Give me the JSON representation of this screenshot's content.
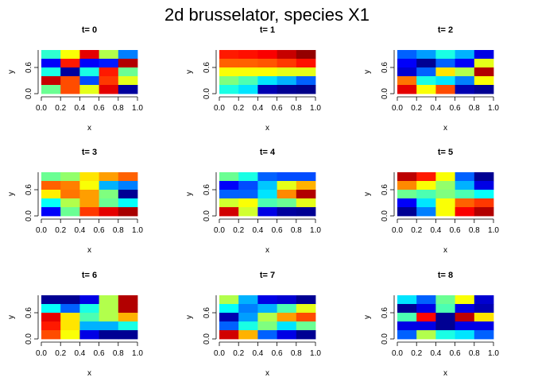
{
  "title": "2d brusselator, species X1",
  "chart_data": {
    "type": "heatmap",
    "title": "2d brusselator, species X1",
    "palette": "jet",
    "jet_colors": [
      "#00007F",
      "#0000FF",
      "#007FFF",
      "#00FFFF",
      "#7FFF7F",
      "#FFFF00",
      "#FF7F00",
      "#FF0000",
      "#7F0000"
    ],
    "xlabel": "x",
    "ylabel": "y",
    "xlim": [
      0,
      1
    ],
    "ylim": [
      0,
      1
    ],
    "x_ticks": [
      "0.0",
      "0.2",
      "0.4",
      "0.6",
      "0.8",
      "1.0"
    ],
    "y_ticks": [
      "0.0",
      "0.6"
    ],
    "grid_cols": 5,
    "grid_rows": 5,
    "value_scale": [
      0,
      1
    ],
    "panels": [
      {
        "label": "t=  0",
        "rows_top_to_bottom": [
          [
            0.42,
            0.62,
            0.9,
            0.55,
            0.25
          ],
          [
            0.12,
            0.85,
            0.12,
            0.15,
            0.95
          ],
          [
            0.4,
            0.03,
            0.4,
            0.85,
            0.48
          ],
          [
            0.93,
            0.8,
            0.2,
            0.82,
            0.6
          ],
          [
            0.48,
            0.8,
            0.6,
            0.9,
            0.03
          ]
        ]
      },
      {
        "label": "t=  1",
        "rows_top_to_bottom": [
          [
            0.85,
            0.86,
            0.88,
            0.93,
            0.98
          ],
          [
            0.78,
            0.78,
            0.79,
            0.82,
            0.86
          ],
          [
            0.62,
            0.62,
            0.62,
            0.6,
            0.6
          ],
          [
            0.5,
            0.45,
            0.35,
            0.3,
            0.22
          ],
          [
            0.4,
            0.35,
            0.05,
            0.02,
            0.01
          ]
        ]
      },
      {
        "label": "t=  2",
        "rows_top_to_bottom": [
          [
            0.22,
            0.28,
            0.4,
            0.3,
            0.1
          ],
          [
            0.12,
            0.02,
            0.22,
            0.12,
            0.6
          ],
          [
            0.08,
            0.22,
            0.65,
            0.55,
            0.95
          ],
          [
            0.76,
            0.4,
            0.35,
            0.25,
            0.62
          ],
          [
            0.9,
            0.62,
            0.8,
            0.05,
            0.02
          ]
        ]
      },
      {
        "label": "t=  3",
        "rows_top_to_bottom": [
          [
            0.48,
            0.52,
            0.65,
            0.72,
            0.78
          ],
          [
            0.78,
            0.75,
            0.62,
            0.3,
            0.25
          ],
          [
            0.64,
            0.76,
            0.72,
            0.5,
            0.02
          ],
          [
            0.38,
            0.55,
            0.72,
            0.48,
            0.38
          ],
          [
            0.12,
            0.48,
            0.82,
            0.9,
            0.96
          ]
        ]
      },
      {
        "label": "t=  4",
        "rows_top_to_bottom": [
          [
            0.48,
            0.4,
            0.22,
            0.2,
            0.2
          ],
          [
            0.12,
            0.2,
            0.32,
            0.6,
            0.7
          ],
          [
            0.22,
            0.22,
            0.35,
            0.74,
            0.95
          ],
          [
            0.58,
            0.62,
            0.45,
            0.48,
            0.6
          ],
          [
            0.92,
            0.58,
            0.1,
            0.03,
            0.02
          ]
        ]
      },
      {
        "label": "t=  5",
        "rows_top_to_bottom": [
          [
            0.94,
            0.85,
            0.62,
            0.22,
            0.02
          ],
          [
            0.74,
            0.62,
            0.52,
            0.3,
            0.1
          ],
          [
            0.48,
            0.45,
            0.5,
            0.45,
            0.38
          ],
          [
            0.12,
            0.35,
            0.62,
            0.78,
            0.82
          ],
          [
            0.02,
            0.25,
            0.62,
            0.88,
            0.95
          ]
        ]
      },
      {
        "label": "t=  6",
        "rows_top_to_bottom": [
          [
            0.02,
            0.02,
            0.1,
            0.55,
            0.95
          ],
          [
            0.38,
            0.22,
            0.4,
            0.55,
            0.95
          ],
          [
            0.9,
            0.65,
            0.45,
            0.55,
            0.7
          ],
          [
            0.85,
            0.65,
            0.3,
            0.3,
            0.4
          ],
          [
            0.8,
            0.62,
            0.1,
            0.02,
            0.02
          ]
        ]
      },
      {
        "label": "t=  7",
        "rows_top_to_bottom": [
          [
            0.55,
            0.3,
            0.1,
            0.08,
            0.02
          ],
          [
            0.38,
            0.25,
            0.3,
            0.45,
            0.6
          ],
          [
            0.05,
            0.28,
            0.55,
            0.72,
            0.8
          ],
          [
            0.22,
            0.4,
            0.5,
            0.35,
            0.48
          ],
          [
            0.92,
            0.7,
            0.22,
            0.1,
            0.02
          ]
        ]
      },
      {
        "label": "t=  8",
        "rows_top_to_bottom": [
          [
            0.35,
            0.22,
            0.48,
            0.62,
            0.08
          ],
          [
            0.02,
            0.1,
            0.45,
            0.1,
            0.05
          ],
          [
            0.45,
            0.87,
            0.02,
            0.94,
            0.65
          ],
          [
            0.1,
            0.1,
            0.02,
            0.1,
            0.1
          ],
          [
            0.22,
            0.55,
            0.4,
            0.35,
            0.22
          ]
        ]
      }
    ]
  }
}
